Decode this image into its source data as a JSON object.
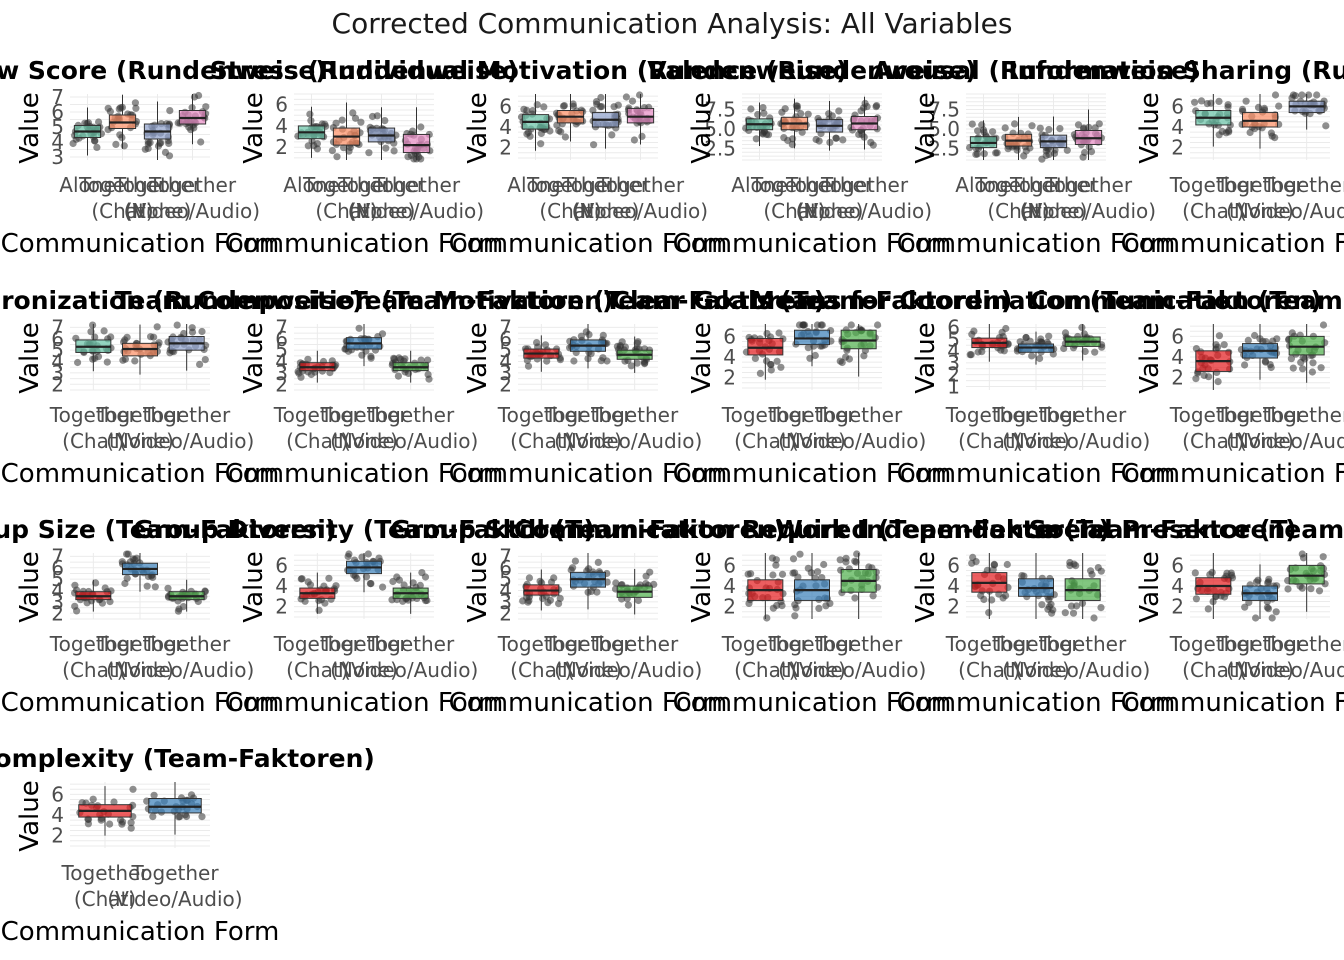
{
  "page": {
    "title": "Corrected Communication Analysis: All Variables"
  },
  "chart_data": [
    {
      "type": "box",
      "title": "Flow Score (Rundenweise)",
      "xlabel": "Communication Form",
      "ylabel": "Value",
      "ylim": [
        2.8,
        7.2
      ],
      "yticks": [
        3,
        4,
        5,
        6,
        7
      ],
      "categories": [
        "Alone",
        "Together (Chat)",
        "Together (None)",
        "Together (Video/Audio)"
      ],
      "colors": [
        "#66c2a5",
        "#fc8d62",
        "#8da0cb",
        "#e78ac3"
      ],
      "boxes": [
        {
          "q1": 4.3,
          "median": 4.7,
          "q3": 5.1
        },
        {
          "q1": 4.9,
          "median": 5.3,
          "q3": 5.8
        },
        {
          "q1": 4.2,
          "median": 4.7,
          "q3": 5.2
        },
        {
          "q1": 5.2,
          "median": 5.6,
          "q3": 6.1
        }
      ]
    },
    {
      "type": "box",
      "title": "Stress (Rundenweise)",
      "xlabel": "Communication Form",
      "ylabel": "Value",
      "ylim": [
        0.8,
        7
      ],
      "yticks": [
        2,
        4,
        6
      ],
      "categories": [
        "Alone",
        "Together (Chat)",
        "Together (None)",
        "Together (Video/Audio)"
      ],
      "colors": [
        "#66c2a5",
        "#fc8d62",
        "#8da0cb",
        "#e78ac3"
      ],
      "boxes": [
        {
          "q1": 2.8,
          "median": 3.4,
          "q3": 4.0
        },
        {
          "q1": 2.2,
          "median": 3.0,
          "q3": 3.8
        },
        {
          "q1": 2.5,
          "median": 3.1,
          "q3": 3.8
        },
        {
          "q1": 1.5,
          "median": 2.2,
          "q3": 3.2
        }
      ]
    },
    {
      "type": "box",
      "title": "Individual Motivation (Rundenweise)",
      "xlabel": "Communication Form",
      "ylabel": "Value",
      "ylim": [
        0.8,
        7.2
      ],
      "yticks": [
        2,
        4,
        6
      ],
      "categories": [
        "Alone",
        "Together (Chat)",
        "Together (None)",
        "Together (Video/Audio)"
      ],
      "colors": [
        "#66c2a5",
        "#fc8d62",
        "#8da0cb",
        "#e78ac3"
      ],
      "boxes": [
        {
          "q1": 3.8,
          "median": 4.5,
          "q3": 5.2
        },
        {
          "q1": 4.4,
          "median": 5.0,
          "q3": 5.6
        },
        {
          "q1": 4.0,
          "median": 4.7,
          "q3": 5.4
        },
        {
          "q1": 4.4,
          "median": 5.0,
          "q3": 5.8
        }
      ]
    },
    {
      "type": "box",
      "title": "Valence (Rundenweise)",
      "xlabel": "Communication Form",
      "ylabel": "Value",
      "ylim": [
        1,
        9.5
      ],
      "yticks": [
        2.5,
        5.0,
        7.5
      ],
      "categories": [
        "Alone",
        "Together (Chat)",
        "Together (None)",
        "Together (Video/Audio)"
      ],
      "colors": [
        "#66c2a5",
        "#fc8d62",
        "#8da0cb",
        "#e78ac3"
      ],
      "boxes": [
        {
          "q1": 4.9,
          "median": 5.6,
          "q3": 6.3
        },
        {
          "q1": 4.9,
          "median": 5.7,
          "q3": 6.5
        },
        {
          "q1": 4.6,
          "median": 5.4,
          "q3": 6.2
        },
        {
          "q1": 4.9,
          "median": 5.7,
          "q3": 6.6
        }
      ]
    },
    {
      "type": "box",
      "title": "Arousal (Rundenweise)",
      "xlabel": "Communication Form",
      "ylabel": "Value",
      "ylim": [
        1,
        9.5
      ],
      "yticks": [
        2.5,
        5.0,
        7.5
      ],
      "categories": [
        "Alone",
        "Together (Chat)",
        "Together (None)",
        "Together (Video/Audio)"
      ],
      "colors": [
        "#66c2a5",
        "#fc8d62",
        "#8da0cb",
        "#e78ac3"
      ],
      "boxes": [
        {
          "q1": 2.6,
          "median": 3.2,
          "q3": 4.0
        },
        {
          "q1": 2.8,
          "median": 3.5,
          "q3": 4.3
        },
        {
          "q1": 2.6,
          "median": 3.4,
          "q3": 4.2
        },
        {
          "q1": 3.0,
          "median": 3.8,
          "q3": 4.8
        }
      ]
    },
    {
      "type": "box",
      "title": "Information Sharing (Rundenweise)",
      "xlabel": "Communication Form",
      "ylabel": "Value",
      "ylim": [
        0.8,
        7.2
      ],
      "yticks": [
        2,
        4,
        6
      ],
      "categories": [
        "Together (Chat)",
        "Together (None)",
        "Together (Video/Audio)"
      ],
      "colors": [
        "#66c2a5",
        "#fc8d62",
        "#8da0cb"
      ],
      "boxes": [
        {
          "q1": 4.2,
          "median": 4.9,
          "q3": 5.6
        },
        {
          "q1": 4.0,
          "median": 4.6,
          "q3": 5.4
        },
        {
          "q1": 5.4,
          "median": 6.0,
          "q3": 6.5
        }
      ]
    },
    {
      "type": "box",
      "title": "Synchronization (Rundenweise)",
      "xlabel": "Communication Form",
      "ylabel": "Value",
      "ylim": [
        1.5,
        7.3
      ],
      "yticks": [
        2,
        3,
        4,
        5,
        6,
        7
      ],
      "categories": [
        "Together (Chat)",
        "Together (None)",
        "Together (Video/Audio)"
      ],
      "colors": [
        "#66c2a5",
        "#fc8d62",
        "#8da0cb"
      ],
      "boxes": [
        {
          "q1": 4.8,
          "median": 5.3,
          "q3": 5.9
        },
        {
          "q1": 4.5,
          "median": 5.1,
          "q3": 5.6
        },
        {
          "q1": 5.0,
          "median": 5.6,
          "q3": 6.2
        }
      ]
    },
    {
      "type": "box",
      "title": "Team Composition (Team-Faktoren)",
      "xlabel": "Communication Form",
      "ylabel": "Value",
      "ylim": [
        1.5,
        7.3
      ],
      "yticks": [
        2,
        3,
        4,
        5,
        6,
        7
      ],
      "categories": [
        "Together (Chat)",
        "Together (None)",
        "Together (Video/Audio)"
      ],
      "colors": [
        "#e41a1c",
        "#377eb8",
        "#4daf4a"
      ],
      "boxes": [
        {
          "q1": 3.2,
          "median": 3.5,
          "q3": 3.9
        },
        {
          "q1": 5.1,
          "median": 5.6,
          "q3": 6.1
        },
        {
          "q1": 3.2,
          "median": 3.5,
          "q3": 3.9
        }
      ]
    },
    {
      "type": "box",
      "title": "Team Motivation (Team-Faktoren)",
      "xlabel": "Communication Form",
      "ylabel": "Value",
      "ylim": [
        1.5,
        7.3
      ],
      "yticks": [
        2,
        3,
        4,
        5,
        6,
        7
      ],
      "categories": [
        "Together (Chat)",
        "Together (None)",
        "Together (Video/Audio)"
      ],
      "colors": [
        "#e41a1c",
        "#377eb8",
        "#4daf4a"
      ],
      "boxes": [
        {
          "q1": 4.3,
          "median": 4.7,
          "q3": 5.1
        },
        {
          "q1": 4.9,
          "median": 5.4,
          "q3": 5.9
        },
        {
          "q1": 4.2,
          "median": 4.6,
          "q3": 5.0
        }
      ]
    },
    {
      "type": "box",
      "title": "Clear Goals (Team-Faktoren)",
      "xlabel": "Communication Form",
      "ylabel": "Value",
      "ylim": [
        0.8,
        7.2
      ],
      "yticks": [
        2,
        4,
        6
      ],
      "categories": [
        "Together (Chat)",
        "Together (None)",
        "Together (Video/Audio)"
      ],
      "colors": [
        "#e41a1c",
        "#377eb8",
        "#4daf4a"
      ],
      "boxes": [
        {
          "q1": 4.2,
          "median": 4.9,
          "q3": 5.8
        },
        {
          "q1": 5.2,
          "median": 5.8,
          "q3": 6.6
        },
        {
          "q1": 4.8,
          "median": 5.6,
          "q3": 6.6
        }
      ]
    },
    {
      "type": "box",
      "title": "Means for Coordination (Team-Faktoren)",
      "xlabel": "Communication Form",
      "ylabel": "Value",
      "ylim": [
        0.7,
        6.3
      ],
      "yticks": [
        1,
        2,
        3,
        4,
        5,
        6
      ],
      "categories": [
        "Together (Chat)",
        "Together (None)",
        "Together (Video/Audio)"
      ],
      "colors": [
        "#e41a1c",
        "#377eb8",
        "#4daf4a"
      ],
      "boxes": [
        {
          "q1": 4.3,
          "median": 4.7,
          "q3": 5.1
        },
        {
          "q1": 3.9,
          "median": 4.3,
          "q3": 4.6
        },
        {
          "q1": 4.4,
          "median": 4.8,
          "q3": 5.2
        }
      ]
    },
    {
      "type": "box",
      "title": "Communication (Team-Faktoren)",
      "xlabel": "Communication Form",
      "ylabel": "Value",
      "ylim": [
        0.8,
        7.2
      ],
      "yticks": [
        2,
        4,
        6
      ],
      "categories": [
        "Together (Chat)",
        "Together (None)",
        "Together (Video/Audio)"
      ],
      "colors": [
        "#e41a1c",
        "#377eb8",
        "#4daf4a"
      ],
      "boxes": [
        {
          "q1": 2.6,
          "median": 3.6,
          "q3": 4.6
        },
        {
          "q1": 3.9,
          "median": 4.6,
          "q3": 5.3
        },
        {
          "q1": 4.2,
          "median": 5.0,
          "q3": 6.0
        }
      ]
    },
    {
      "type": "box",
      "title": "Group Size (Team-Faktoren)",
      "xlabel": "Communication Form",
      "ylabel": "Value",
      "ylim": [
        1.5,
        7.3
      ],
      "yticks": [
        2,
        3,
        4,
        5,
        6,
        7
      ],
      "categories": [
        "Together (Chat)",
        "Together (None)",
        "Together (Video/Audio)"
      ],
      "colors": [
        "#e41a1c",
        "#377eb8",
        "#4daf4a"
      ],
      "boxes": [
        {
          "q1": 3.2,
          "median": 3.5,
          "q3": 3.9
        },
        {
          "q1": 5.4,
          "median": 5.9,
          "q3": 6.4
        },
        {
          "q1": 3.2,
          "median": 3.5,
          "q3": 3.9
        }
      ]
    },
    {
      "type": "box",
      "title": "Group Diversity (Team-Faktoren)",
      "xlabel": "Communication Form",
      "ylabel": "Value",
      "ylim": [
        0.8,
        7.2
      ],
      "yticks": [
        2,
        4,
        6
      ],
      "categories": [
        "Together (Chat)",
        "Together (None)",
        "Together (Video/Audio)"
      ],
      "colors": [
        "#e41a1c",
        "#377eb8",
        "#4daf4a"
      ],
      "boxes": [
        {
          "q1": 2.8,
          "median": 3.3,
          "q3": 3.8
        },
        {
          "q1": 5.2,
          "median": 5.8,
          "q3": 6.4
        },
        {
          "q1": 2.8,
          "median": 3.3,
          "q3": 3.8
        }
      ]
    },
    {
      "type": "box",
      "title": "Group Skill (Team-Faktoren)",
      "xlabel": "Communication Form",
      "ylabel": "Value",
      "ylim": [
        1.5,
        7.3
      ],
      "yticks": [
        2,
        3,
        4,
        5,
        6,
        7
      ],
      "categories": [
        "Together (Chat)",
        "Together (None)",
        "Together (Video/Audio)"
      ],
      "colors": [
        "#e41a1c",
        "#377eb8",
        "#4daf4a"
      ],
      "boxes": [
        {
          "q1": 3.6,
          "median": 4.0,
          "q3": 4.5
        },
        {
          "q1": 4.3,
          "median": 5.0,
          "q3": 5.6
        },
        {
          "q1": 3.4,
          "median": 3.9,
          "q3": 4.4
        }
      ]
    },
    {
      "type": "box",
      "title": "Communication Required (Team-Faktoren)",
      "xlabel": "Communication Form",
      "ylabel": "Value",
      "ylim": [
        0.8,
        7.2
      ],
      "yticks": [
        2,
        4,
        6
      ],
      "categories": [
        "Together (Chat)",
        "Together (None)",
        "Together (Video/Audio)"
      ],
      "colors": [
        "#e41a1c",
        "#377eb8",
        "#4daf4a"
      ],
      "boxes": [
        {
          "q1": 2.6,
          "median": 3.6,
          "q3": 4.6
        },
        {
          "q1": 2.6,
          "median": 3.6,
          "q3": 4.6
        },
        {
          "q1": 3.4,
          "median": 4.5,
          "q3": 5.6
        }
      ]
    },
    {
      "type": "box",
      "title": "Work Independence (Team-Faktoren)",
      "xlabel": "Communication Form",
      "ylabel": "Value",
      "ylim": [
        0.8,
        7.2
      ],
      "yticks": [
        2,
        4,
        6
      ],
      "categories": [
        "Together (Chat)",
        "Together (None)",
        "Together (Video/Audio)"
      ],
      "colors": [
        "#e41a1c",
        "#377eb8",
        "#4daf4a"
      ],
      "boxes": [
        {
          "q1": 3.4,
          "median": 4.3,
          "q3": 5.3
        },
        {
          "q1": 3.0,
          "median": 3.8,
          "q3": 4.7
        },
        {
          "q1": 2.6,
          "median": 3.6,
          "q3": 4.7
        }
      ]
    },
    {
      "type": "box",
      "title": "Social Presence (Team-Faktoren)",
      "xlabel": "Communication Form",
      "ylabel": "Value",
      "ylim": [
        0.8,
        7.2
      ],
      "yticks": [
        2,
        4,
        6
      ],
      "categories": [
        "Together (Chat)",
        "Together (None)",
        "Together (Video/Audio)"
      ],
      "colors": [
        "#e41a1c",
        "#377eb8",
        "#4daf4a"
      ],
      "boxes": [
        {
          "q1": 3.2,
          "median": 4.0,
          "q3": 4.8
        },
        {
          "q1": 2.6,
          "median": 3.3,
          "q3": 4.0
        },
        {
          "q1": 4.2,
          "median": 5.0,
          "q3": 6.0
        }
      ]
    },
    {
      "type": "box",
      "title": "Task Complexity (Team-Faktoren)",
      "xlabel": "Communication Form",
      "ylabel": "Value",
      "ylim": [
        0.8,
        7.2
      ],
      "yticks": [
        2,
        4,
        6
      ],
      "categories": [
        "Together (Chat)",
        "Together (Video/Audio)"
      ],
      "colors": [
        "#e41a1c",
        "#377eb8"
      ],
      "boxes": [
        {
          "q1": 3.8,
          "median": 4.4,
          "q3": 5.0
        },
        {
          "q1": 4.2,
          "median": 4.8,
          "q3": 5.6
        }
      ]
    }
  ]
}
